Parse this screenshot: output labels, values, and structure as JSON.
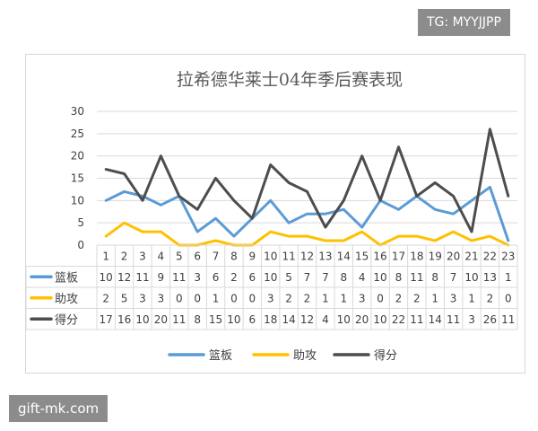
{
  "watermarks": {
    "top": "TG: MYYJJPP",
    "bottom": "gift-mk.com"
  },
  "colors": {
    "rebounds": "#5b9bd5",
    "assists": "#ffc000",
    "points": "#4d4d4d",
    "grid": "#d9d9d9",
    "text": "#404040",
    "title": "#595959"
  },
  "chart_data": {
    "type": "line",
    "title": "拉希德华莱士04年季后赛表现",
    "x": [
      "1",
      "2",
      "3",
      "4",
      "5",
      "6",
      "7",
      "8",
      "9",
      "10",
      "11",
      "12",
      "13",
      "14",
      "15",
      "16",
      "17",
      "18",
      "19",
      "20",
      "21",
      "22",
      "23"
    ],
    "ylim": [
      0,
      30
    ],
    "yticks": [
      0,
      5,
      10,
      15,
      20,
      25,
      30
    ],
    "grid": true,
    "legend_position": "bottom",
    "data_table": true,
    "series": [
      {
        "name": "篮板",
        "color": "#5b9bd5",
        "values": [
          10,
          12,
          11,
          9,
          11,
          3,
          6,
          2,
          6,
          10,
          5,
          7,
          7,
          8,
          4,
          10,
          8,
          11,
          8,
          7,
          10,
          13,
          1
        ]
      },
      {
        "name": "助攻",
        "color": "#ffc000",
        "values": [
          2,
          5,
          3,
          3,
          0,
          0,
          1,
          0,
          0,
          3,
          2,
          2,
          1,
          1,
          3,
          0,
          2,
          2,
          1,
          3,
          1,
          2,
          0
        ]
      },
      {
        "name": "得分",
        "color": "#4d4d4d",
        "values": [
          17,
          16,
          10,
          20,
          11,
          8,
          15,
          10,
          6,
          18,
          14,
          12,
          4,
          10,
          20,
          10,
          22,
          11,
          14,
          11,
          3,
          26,
          11
        ]
      }
    ]
  }
}
